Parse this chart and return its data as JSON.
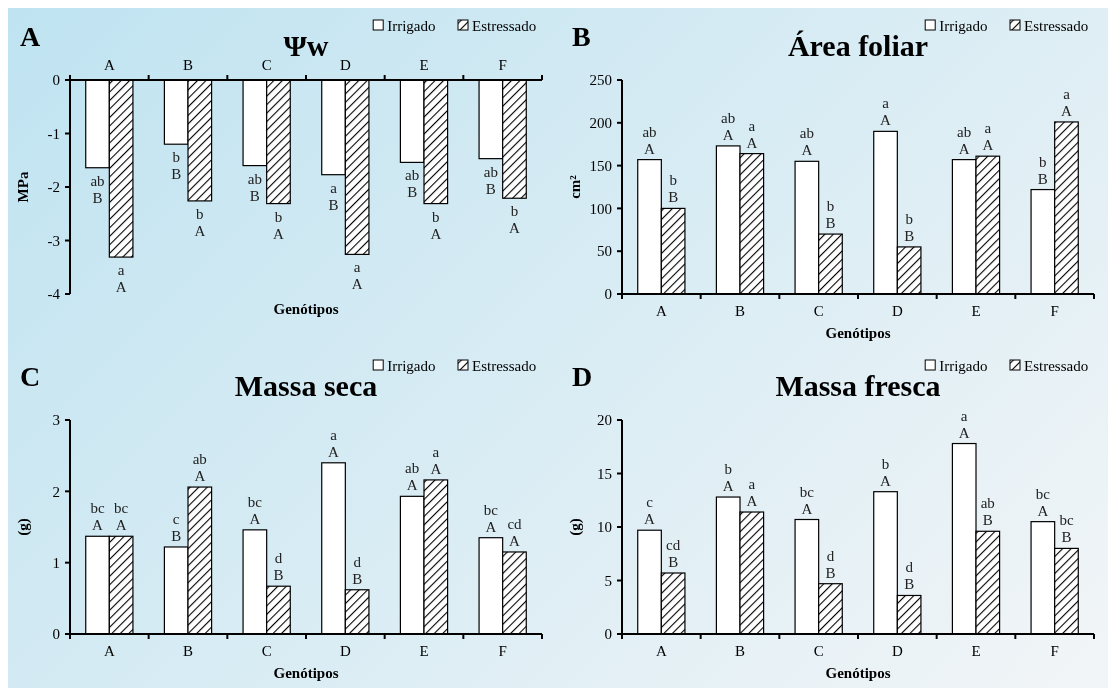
{
  "chart_data": [
    {
      "type": "bar",
      "title": "Ψw",
      "annotations": [
        "A"
      ],
      "xlabel": "Genótipos",
      "ylabel": "MPa",
      "categories": [
        "A",
        "B",
        "C",
        "D",
        "E",
        "F"
      ],
      "ylim": [
        -4,
        0
      ],
      "yticks": [
        -4,
        -3,
        -2,
        -1,
        0
      ],
      "legend": "top right",
      "series": [
        {
          "name": "Irrigado",
          "color": "#ffffff",
          "values": [
            -1.64,
            -1.2,
            -1.6,
            -1.77,
            -1.54,
            -1.47
          ],
          "value_labels": [
            "ab\nB",
            "b\nB",
            "ab\nB",
            "a\nB",
            "ab\nB",
            "ab\nB"
          ]
        },
        {
          "name": "Estressado",
          "color": "#000000",
          "values": [
            -3.31,
            -2.26,
            -2.31,
            -3.26,
            -2.31,
            -2.21
          ],
          "value_labels": [
            "a\nA",
            "b\nA",
            "b\nA",
            "a\nA",
            "b\nA",
            "b\nA"
          ]
        }
      ]
    },
    {
      "type": "bar",
      "title": "Área foliar",
      "annotations": [
        "B"
      ],
      "xlabel": "Genótipos",
      "ylabel": "cm²",
      "categories": [
        "A",
        "B",
        "C",
        "D",
        "E",
        "F"
      ],
      "ylim": [
        0,
        250
      ],
      "yticks": [
        0,
        50,
        100,
        150,
        200,
        250
      ],
      "legend": "top right",
      "series": [
        {
          "name": "Irrigado",
          "color": "#ffffff",
          "values": [
            157,
            173,
            155,
            190,
            157,
            122
          ],
          "value_labels": [
            "ab\nA",
            "ab\nA",
            "ab\nA",
            "a\nA",
            "ab\nA",
            "b\nB"
          ]
        },
        {
          "name": "Estressado",
          "color": "#000000",
          "values": [
            100,
            164,
            70,
            55,
            161,
            201
          ],
          "value_labels": [
            "b\nB",
            "a\nA",
            "b\nB",
            "b\nB",
            "a\nA",
            "a\nA"
          ]
        }
      ]
    },
    {
      "type": "bar",
      "title": "Massa seca",
      "annotations": [
        "C"
      ],
      "xlabel": "Genótipos",
      "ylabel": "(g)",
      "categories": [
        "A",
        "B",
        "C",
        "D",
        "E",
        "F"
      ],
      "ylim": [
        0,
        3
      ],
      "yticks": [
        0,
        1,
        2,
        3
      ],
      "legend": "top right",
      "series": [
        {
          "name": "Irrigado",
          "color": "#ffffff",
          "values": [
            1.37,
            1.22,
            1.46,
            2.4,
            1.93,
            1.35
          ],
          "value_labels": [
            "bc\nA",
            "c\nB",
            "bc\nA",
            "a\nA",
            "ab\nA",
            "bc\nA"
          ]
        },
        {
          "name": "Estressado",
          "color": "#000000",
          "values": [
            1.37,
            2.06,
            0.67,
            0.62,
            2.16,
            1.15
          ],
          "value_labels": [
            "bc\nA",
            "ab\nA",
            "d\nB",
            "d\nB",
            "a\nA",
            "cd\nA"
          ]
        }
      ]
    },
    {
      "type": "bar",
      "title": "Massa fresca",
      "annotations": [
        "D"
      ],
      "xlabel": "Genótipos",
      "ylabel": "(g)",
      "categories": [
        "A",
        "B",
        "C",
        "D",
        "E",
        "F"
      ],
      "ylim": [
        0,
        20
      ],
      "yticks": [
        0,
        5,
        10,
        15,
        20
      ],
      "legend": "top right",
      "series": [
        {
          "name": "Irrigado",
          "color": "#ffffff",
          "values": [
            9.7,
            12.8,
            10.7,
            13.3,
            17.8,
            10.5
          ],
          "value_labels": [
            "c\nA",
            "b\nA",
            "bc\nA",
            "b\nA",
            "a\nA",
            "bc\nA"
          ]
        },
        {
          "name": "Estressado",
          "color": "#000000",
          "values": [
            5.7,
            11.4,
            4.7,
            3.6,
            9.6,
            8.0
          ],
          "value_labels": [
            "cd\nB",
            "a\nA",
            "d\nB",
            "d\nB",
            "ab\nB",
            "bc\nB"
          ]
        }
      ]
    }
  ]
}
